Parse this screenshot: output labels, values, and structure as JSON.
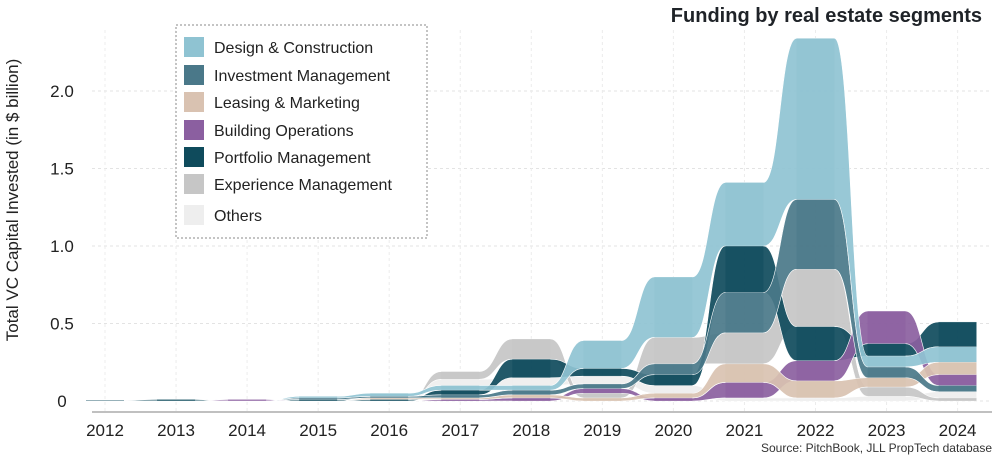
{
  "chart_data": {
    "type": "area",
    "title": "Funding by real estate segments",
    "xlabel": "",
    "ylabel": "Total VC Capital Invested (in $ billion)",
    "source": "Source: PitchBook, JLL PropTech database",
    "x": [
      "2012",
      "2013",
      "2014",
      "2015",
      "2016",
      "2017",
      "2018",
      "2019",
      "2020",
      "2021",
      "2022",
      "2023",
      "2024"
    ],
    "yticks": [
      "0",
      "0.5",
      "1.0",
      "1.5",
      "2.0"
    ],
    "ylim": [
      -0.05,
      2.35
    ],
    "stacking": "stacked, series ranked within each year (smallest on bottom)",
    "grid": true,
    "legend": "top-left",
    "series": [
      {
        "name": "Design & Construction",
        "color": "#8fc3d2",
        "values": [
          0,
          0,
          0,
          0.01,
          0.02,
          0.03,
          0.03,
          0.18,
          0.39,
          0.41,
          1.04,
          0.07,
          0.1
        ]
      },
      {
        "name": "Investment Management",
        "color": "#4a7889",
        "values": [
          0,
          0,
          0,
          0.01,
          0.01,
          0.02,
          0.03,
          0.03,
          0.07,
          0.26,
          0.45,
          0.07,
          0.04
        ]
      },
      {
        "name": "Leasing & Marketing",
        "color": "#d9c2b1",
        "values": [
          0,
          0,
          0,
          0,
          0.01,
          0.01,
          0.02,
          0.02,
          0.03,
          0.12,
          0.11,
          0.06,
          0.08
        ]
      },
      {
        "name": "Building Operations",
        "color": "#8b5fa0",
        "values": [
          0,
          0,
          0.01,
          0,
          0,
          0.01,
          0.02,
          0.03,
          0.02,
          0.1,
          0.13,
          0.21,
          0.07
        ]
      },
      {
        "name": "Portfolio Management",
        "color": "#0f4b5c",
        "values": [
          0.005,
          0.01,
          0,
          0.01,
          0.01,
          0.03,
          0.12,
          0.05,
          0.07,
          0.3,
          0.22,
          0.08,
          0.16
        ]
      },
      {
        "name": "Experience Management",
        "color": "#c6c6c6",
        "values": [
          0,
          0,
          0,
          0,
          0,
          0.05,
          0.13,
          0.03,
          0.17,
          0.2,
          0.37,
          0.06,
          0.02
        ]
      },
      {
        "name": "Others",
        "color": "#eeeeee",
        "values": [
          0,
          0,
          0,
          0,
          0,
          0.04,
          0.05,
          0.05,
          0.05,
          0.02,
          0.02,
          0.03,
          0.04
        ]
      }
    ]
  }
}
